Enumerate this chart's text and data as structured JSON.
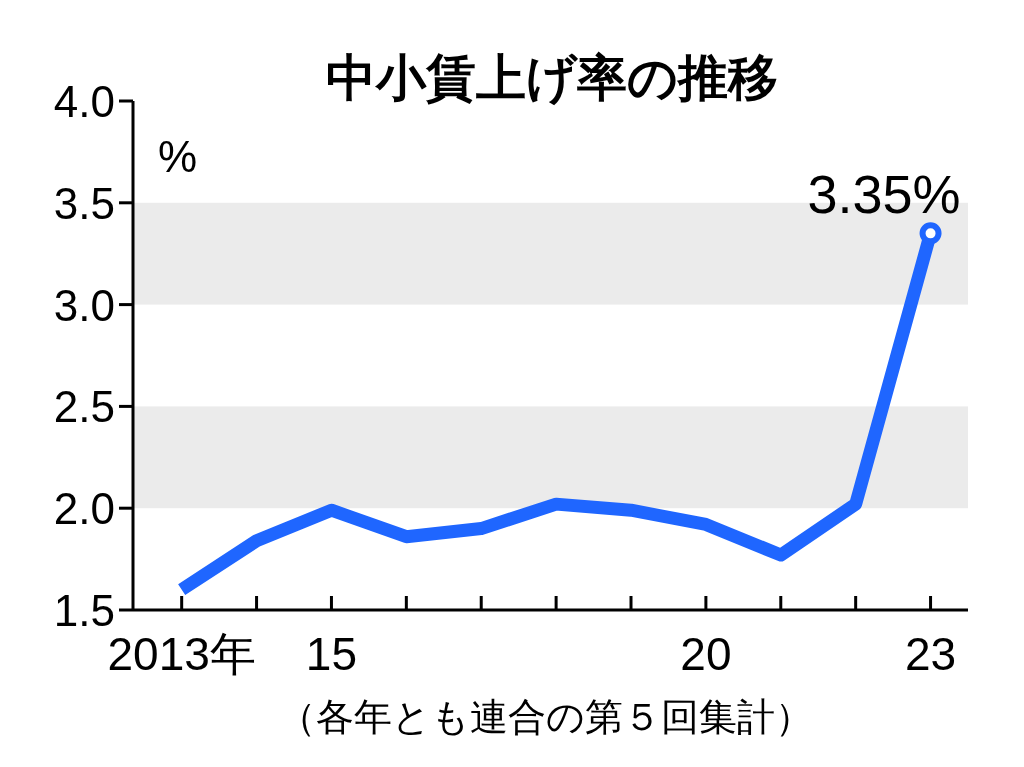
{
  "chart_data": {
    "type": "line",
    "title": "中小賃上げ率の推移",
    "ylabel": "%",
    "x": [
      2013,
      2014,
      2015,
      2016,
      2017,
      2018,
      2019,
      2020,
      2021,
      2022,
      2023
    ],
    "values": [
      1.6,
      1.84,
      1.99,
      1.86,
      1.9,
      2.02,
      1.99,
      1.92,
      1.77,
      2.02,
      3.35
    ],
    "color": "#1f66ff",
    "line_style": "solid",
    "xlim": [
      2012.35,
      2023.5
    ],
    "ylim": [
      1.5,
      4.0
    ],
    "xticks": [
      {
        "value": 2013,
        "label": "2013年"
      },
      {
        "value": 2014,
        "label": null
      },
      {
        "value": 2015,
        "label": "15"
      },
      {
        "value": 2016,
        "label": null
      },
      {
        "value": 2017,
        "label": null
      },
      {
        "value": 2018,
        "label": null
      },
      {
        "value": 2019,
        "label": null
      },
      {
        "value": 2020,
        "label": "20"
      },
      {
        "value": 2021,
        "label": null
      },
      {
        "value": 2022,
        "label": null
      },
      {
        "value": 2023,
        "label": "23"
      }
    ],
    "yticks": [
      {
        "value": 1.5,
        "label": "1.5"
      },
      {
        "value": 2.0,
        "label": "2.0"
      },
      {
        "value": 2.5,
        "label": "2.5"
      },
      {
        "value": 3.0,
        "label": "3.0"
      },
      {
        "value": 3.5,
        "label": "3.5"
      },
      {
        "value": 4.0,
        "label": "4.0"
      }
    ],
    "bands": [
      {
        "axis": "y",
        "from": 2.0,
        "to": 2.5,
        "color": "#ebebeb"
      },
      {
        "axis": "y",
        "from": 3.0,
        "to": 3.5,
        "color": "#ebebeb"
      }
    ],
    "grid": false,
    "annotations": [
      {
        "text": "3.35%",
        "x": 2023,
        "y": 3.35
      },
      "（各年とも連合の第５回集計）"
    ]
  }
}
